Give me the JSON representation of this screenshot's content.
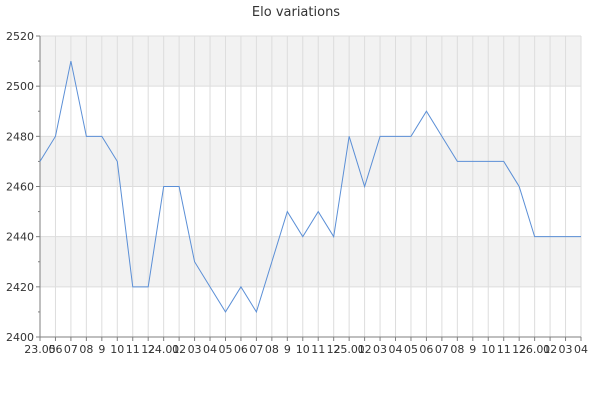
{
  "chart_data": {
    "type": "line",
    "title": "Elo variations",
    "xlabel": "",
    "ylabel": "",
    "ylim": [
      2400,
      2520
    ],
    "y_ticks": [
      2400,
      2420,
      2440,
      2460,
      2480,
      2500,
      2520
    ],
    "grid": true,
    "legend": "none",
    "colors": {
      "line": "#5b8fd6",
      "band": "#f2f2f2",
      "grid": "#dddddd",
      "axis": "#7f7f7f",
      "text": "#333333"
    },
    "x_tick_labels": [
      "23.05",
      "06",
      "07",
      "08",
      "9",
      "10",
      "11",
      "12",
      "24.01",
      "02",
      "03",
      "04",
      "05",
      "06",
      "07",
      "08",
      "9",
      "10",
      "11",
      "12",
      "25.01",
      "02",
      "03",
      "04",
      "05",
      "06",
      "07",
      "08",
      "9",
      "10",
      "11",
      "12",
      "26.01",
      "02",
      "03",
      "04"
    ],
    "series": [
      {
        "values": [
          2470,
          2480,
          2510,
          2480,
          2480,
          2470,
          2420,
          2420,
          2460,
          2460,
          2430,
          2420,
          2410,
          2420,
          2410,
          2430,
          2450,
          2440,
          2450,
          2440,
          2480,
          2460,
          2480,
          2480,
          2480,
          2490,
          2480,
          2470,
          2470,
          2470,
          2470,
          2460,
          2440,
          2440,
          2440,
          2440
        ]
      }
    ]
  }
}
